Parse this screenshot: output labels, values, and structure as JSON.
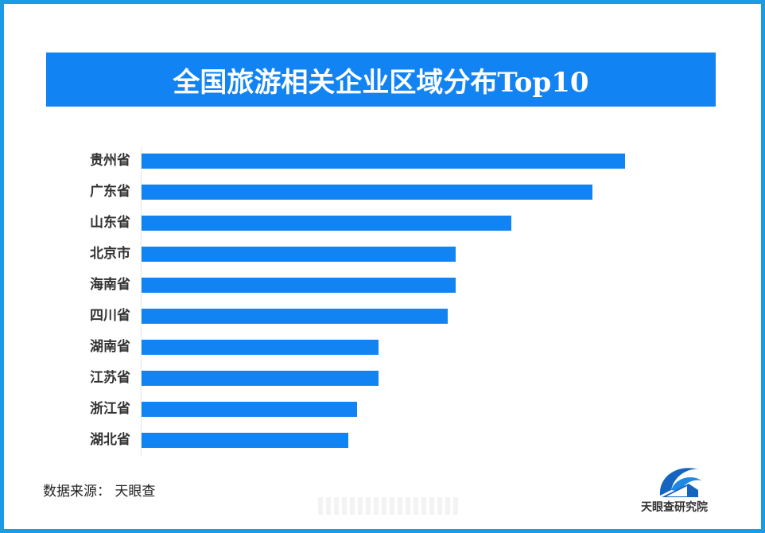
{
  "chart_data": {
    "type": "bar",
    "orientation": "horizontal",
    "title": "全国旅游相关企业区域分布Top10",
    "xlabel": "",
    "ylabel": "",
    "categories": [
      "贵州省",
      "广东省",
      "山东省",
      "北京市",
      "海南省",
      "四川省",
      "湖南省",
      "江苏省",
      "浙江省",
      "湖北省"
    ],
    "values": [
      608,
      567,
      465,
      395,
      395,
      385,
      298,
      298,
      271,
      260
    ],
    "value_note": "relative bar lengths in pixels; no value axis or data labels shown",
    "grid": false,
    "legend": null,
    "bar_color": "#1283f2"
  },
  "header": {
    "title": "全国旅游相关企业区域分布Top10"
  },
  "footer": {
    "source": "数据来源：  天眼查",
    "logo_text": "天眼查研究院"
  },
  "colors": {
    "border": "#1a9be6",
    "title_bg": "#1283f2",
    "bar": "#1283f2",
    "label": "#333333"
  }
}
